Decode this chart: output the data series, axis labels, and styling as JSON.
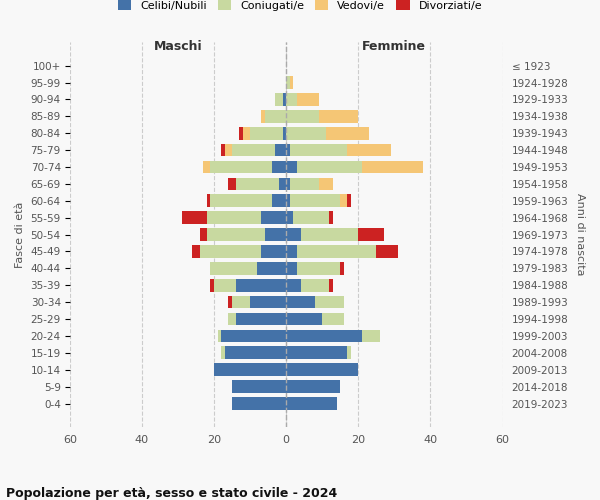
{
  "age_groups": [
    "100+",
    "95-99",
    "90-94",
    "85-89",
    "80-84",
    "75-79",
    "70-74",
    "65-69",
    "60-64",
    "55-59",
    "50-54",
    "45-49",
    "40-44",
    "35-39",
    "30-34",
    "25-29",
    "20-24",
    "15-19",
    "10-14",
    "5-9",
    "0-4"
  ],
  "birth_years": [
    "≤ 1923",
    "1924-1928",
    "1929-1933",
    "1934-1938",
    "1939-1943",
    "1944-1948",
    "1949-1953",
    "1954-1958",
    "1959-1963",
    "1964-1968",
    "1969-1973",
    "1974-1978",
    "1979-1983",
    "1984-1988",
    "1989-1993",
    "1994-1998",
    "1999-2003",
    "2004-2008",
    "2009-2013",
    "2014-2018",
    "2019-2023"
  ],
  "maschi": {
    "celibi": [
      0,
      0,
      1,
      0,
      1,
      3,
      4,
      2,
      4,
      7,
      6,
      7,
      8,
      14,
      10,
      14,
      18,
      17,
      20,
      15,
      15
    ],
    "coniugati": [
      0,
      0,
      2,
      6,
      9,
      12,
      17,
      12,
      17,
      15,
      16,
      17,
      13,
      6,
      5,
      2,
      1,
      1,
      0,
      0,
      0
    ],
    "vedovi": [
      0,
      0,
      0,
      1,
      2,
      2,
      2,
      0,
      0,
      0,
      0,
      0,
      0,
      0,
      0,
      0,
      0,
      0,
      0,
      0,
      0
    ],
    "divorziati": [
      0,
      0,
      0,
      0,
      1,
      1,
      0,
      2,
      1,
      7,
      2,
      2,
      0,
      1,
      1,
      0,
      0,
      0,
      0,
      0,
      0
    ]
  },
  "femmine": {
    "nubili": [
      0,
      0,
      0,
      0,
      0,
      1,
      3,
      1,
      1,
      2,
      4,
      3,
      3,
      4,
      8,
      10,
      21,
      17,
      20,
      15,
      14
    ],
    "coniugate": [
      0,
      1,
      3,
      9,
      11,
      16,
      18,
      8,
      14,
      10,
      16,
      22,
      12,
      8,
      8,
      6,
      5,
      1,
      0,
      0,
      0
    ],
    "vedove": [
      0,
      1,
      6,
      11,
      12,
      12,
      17,
      4,
      2,
      0,
      0,
      0,
      0,
      0,
      0,
      0,
      0,
      0,
      0,
      0,
      0
    ],
    "divorziate": [
      0,
      0,
      0,
      0,
      0,
      0,
      0,
      0,
      1,
      1,
      7,
      6,
      1,
      1,
      0,
      0,
      0,
      0,
      0,
      0,
      0
    ]
  },
  "colors": {
    "celibi": "#4472a8",
    "coniugati": "#c8d9a0",
    "vedovi": "#f5c675",
    "divorziati": "#cc2222"
  },
  "xlim": 60,
  "title": "Popolazione per età, sesso e stato civile - 2024",
  "ylabel_left": "Fasce di età",
  "ylabel_right": "Anni di nascita",
  "label_maschi": "Maschi",
  "label_femmine": "Femmine",
  "legend_labels": [
    "Celibi/Nubili",
    "Coniugati/e",
    "Vedovi/e",
    "Divorziati/e"
  ],
  "bg_color": "#f8f8f8",
  "grid_color": "#cccccc"
}
